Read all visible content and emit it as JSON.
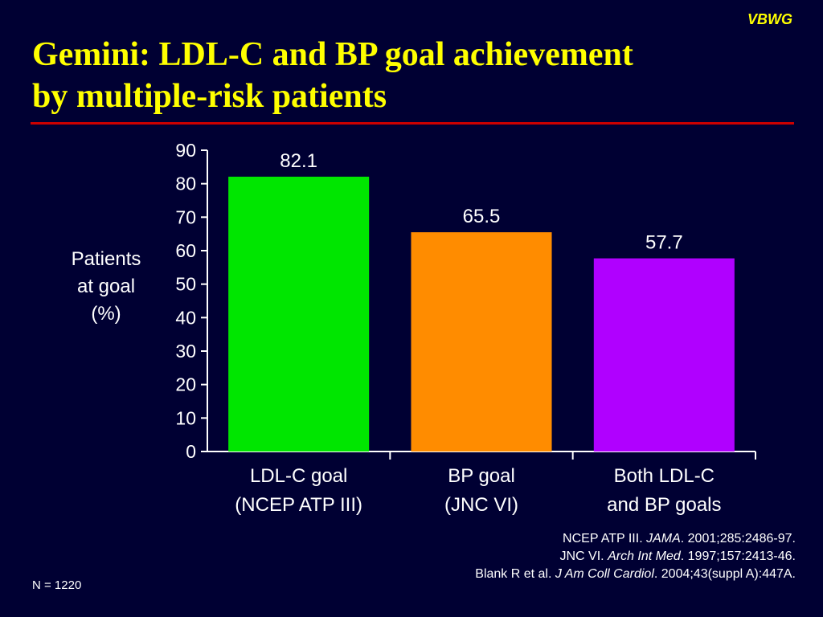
{
  "brand": "VBWG",
  "title_line1": "Gemini: LDL-C and BP goal achievement",
  "title_line2": "by multiple-risk patients",
  "colors": {
    "background": "#000033",
    "title": "#ffff00",
    "rule": "#cc0000"
  },
  "chart_data": {
    "type": "bar",
    "ylabel_lines": [
      "Patients",
      "at goal",
      "(%)"
    ],
    "ylim": [
      0,
      90
    ],
    "yticks": [
      0,
      10,
      20,
      30,
      40,
      50,
      60,
      70,
      80,
      90
    ],
    "grid": false,
    "categories": [
      {
        "line1": "LDL-C goal",
        "line2": "(NCEP ATP III)"
      },
      {
        "line1": "BP goal",
        "line2": "(JNC VI)"
      },
      {
        "line1": "Both LDL-C",
        "line2": "and BP goals"
      }
    ],
    "values": [
      82.1,
      65.5,
      57.7
    ],
    "value_labels": [
      "82.1",
      "65.5",
      "57.7"
    ],
    "bar_colors": [
      "#00e600",
      "#ff8c00",
      "#b000ff"
    ]
  },
  "references": [
    {
      "pre": "NCEP ATP III. ",
      "journal": "JAMA",
      "post": ". 2001;285:2486-97."
    },
    {
      "pre": "JNC VI. ",
      "journal": "Arch Int Med",
      "post": ". 1997;157:2413-46."
    },
    {
      "pre": "Blank R et al. ",
      "journal": "J Am Coll Cardiol",
      "post": ". 2004;43(suppl A):447A."
    }
  ],
  "n_note": "N = 1220"
}
